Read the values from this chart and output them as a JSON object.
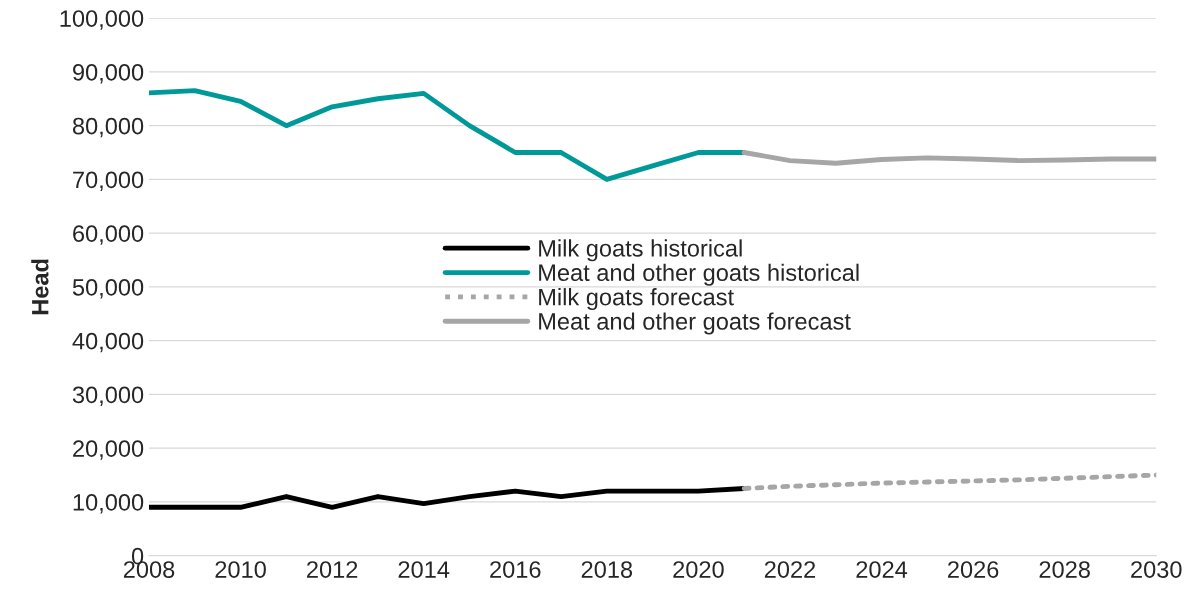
{
  "chart_data": {
    "type": "line",
    "ylabel": "Head",
    "x": [
      2008,
      2009,
      2010,
      2011,
      2012,
      2013,
      2014,
      2015,
      2016,
      2017,
      2018,
      2019,
      2020,
      2021
    ],
    "series": [
      {
        "name": "Milk goats historical",
        "color": "#000000",
        "values": [
          9000,
          9000,
          9000,
          11000,
          9000,
          11000,
          9700,
          11000,
          12000,
          11000,
          12000,
          12000,
          12000,
          12500
        ]
      },
      {
        "name": "Meat and other goats historical",
        "color": "#009999",
        "values": [
          86100,
          86500,
          84500,
          80000,
          83500,
          85000,
          86000,
          80000,
          75000,
          75000,
          70000,
          72500,
          75000,
          75000
        ]
      },
      {
        "name": "Milk goats forecast",
        "color": "#a6a6a6",
        "line_style": "dotted",
        "x": [
          2021,
          2022,
          2023,
          2024,
          2025,
          2026,
          2027,
          2028,
          2029,
          2030
        ],
        "values": [
          12500,
          12900,
          13200,
          13500,
          13700,
          13900,
          14100,
          14400,
          14700,
          15000
        ]
      },
      {
        "name": "Meat and other goats forecast",
        "color": "#a6a6a6",
        "x": [
          2021,
          2022,
          2023,
          2024,
          2025,
          2026,
          2027,
          2028,
          2029,
          2030
        ],
        "values": [
          75000,
          73500,
          73000,
          73700,
          74000,
          73800,
          73500,
          73600,
          73800,
          73800
        ]
      }
    ],
    "xlim": [
      2008,
      2030
    ],
    "xticks": [
      2008,
      2010,
      2012,
      2014,
      2016,
      2018,
      2020,
      2022,
      2024,
      2026,
      2028,
      2030
    ],
    "ylim": [
      0,
      100000
    ],
    "yticks": [
      0,
      {
        "value": 10000,
        "label": "10,000"
      },
      {
        "value": 20000,
        "label": "20,000"
      },
      {
        "value": 30000,
        "label": "30,000"
      },
      {
        "value": 40000,
        "label": "40,000"
      },
      {
        "value": 50000,
        "label": "50,000"
      },
      {
        "value": 60000,
        "label": "60,000"
      },
      {
        "value": 70000,
        "label": "70,000"
      },
      {
        "value": 80000,
        "label": "80,000"
      },
      {
        "value": 90000,
        "label": "90,000"
      },
      {
        "value": 100000,
        "label": "100,000"
      }
    ],
    "grid": "y",
    "legend": "center",
    "marker": "none",
    "line_style": "solid"
  }
}
